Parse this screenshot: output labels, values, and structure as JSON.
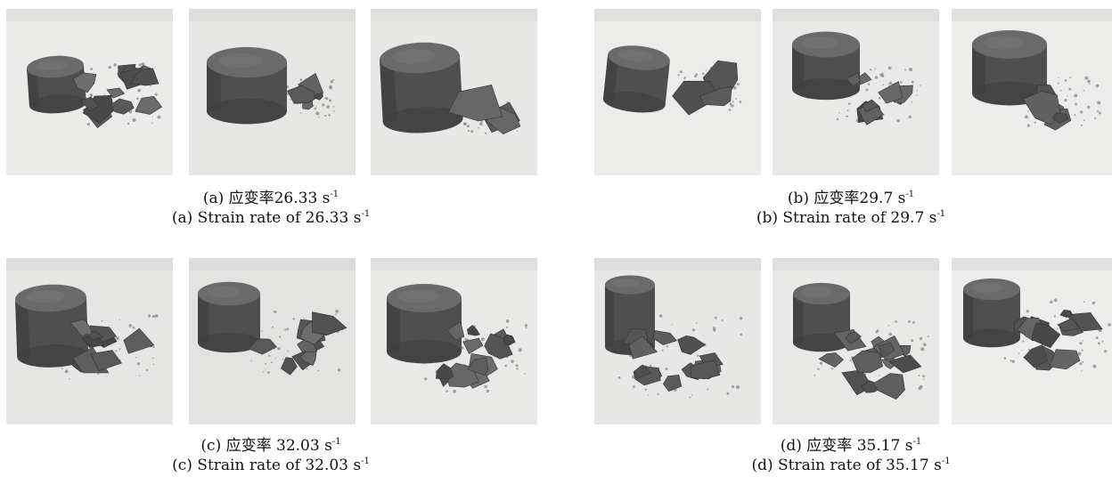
{
  "panels": [
    {
      "caption_cn": "(a) 应变率26.33 s",
      "caption_en": "(a) Strain rate of 26.33 s",
      "unit_exponent": "-1"
    },
    {
      "caption_cn": "(b) 应变率29.7 s",
      "caption_en": "(b) Strain rate of 29.7 s",
      "unit_exponent": "-1"
    },
    {
      "caption_cn": "(c) 应变率 32.03 s",
      "caption_en": "(c) Strain rate of 32.03 s",
      "unit_exponent": "-1"
    },
    {
      "caption_cn": "(d) 应变率 35.17 s",
      "caption_en": "(d) Strain rate of 35.17 s",
      "unit_exponent": "-1"
    }
  ]
}
